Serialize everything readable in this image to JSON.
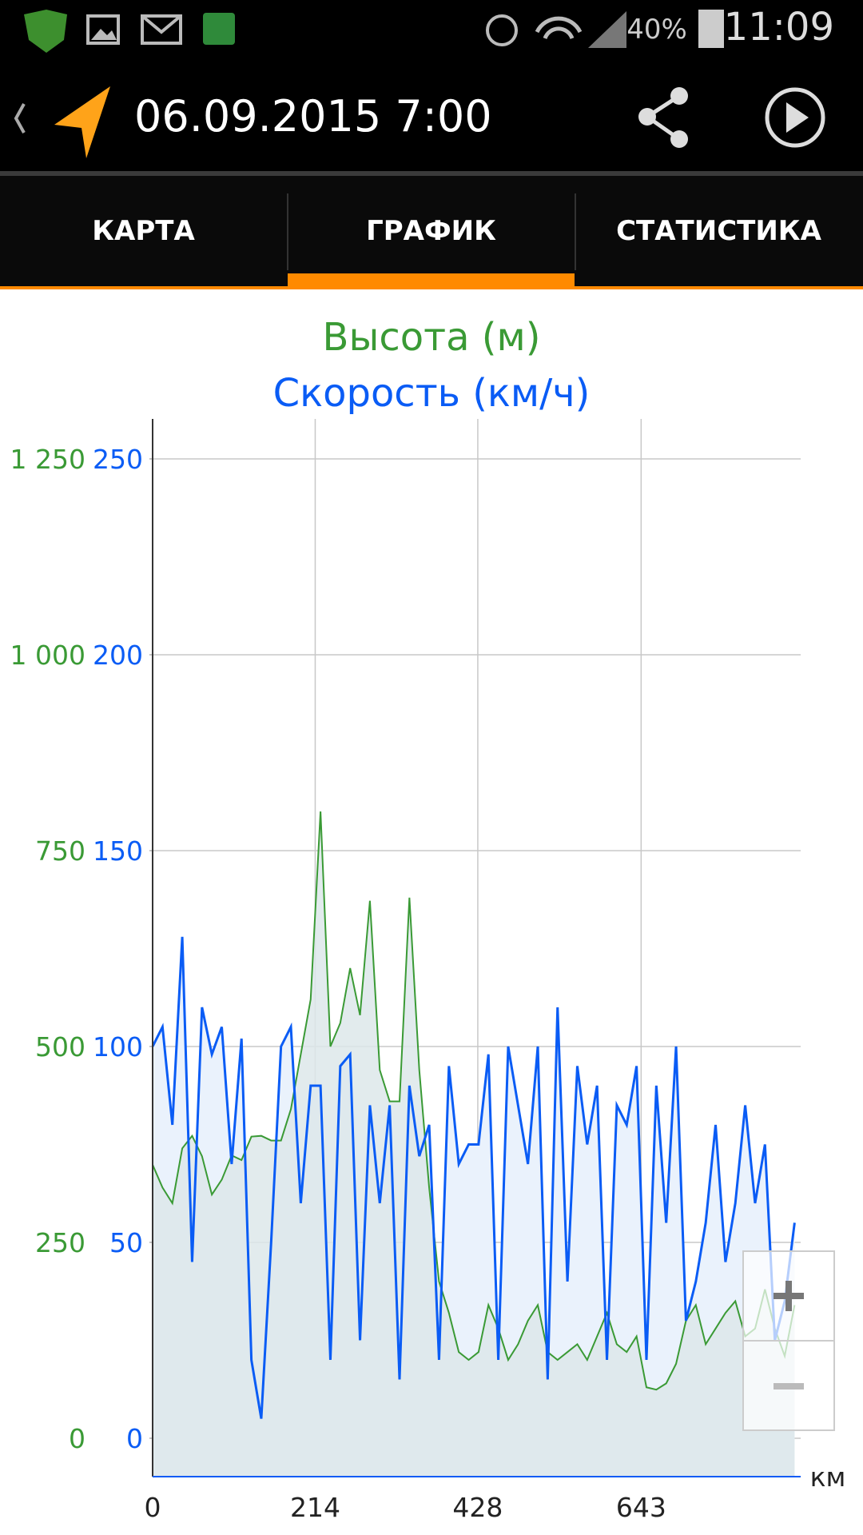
{
  "status_bar": {
    "battery": "40%",
    "time": "11:09"
  },
  "toolbar": {
    "title": "06.09.2015 7:00"
  },
  "tabs": [
    "КАРТА",
    "ГРАФИК",
    "СТАТИСТИКА"
  ],
  "chart_data": {
    "type": "line",
    "x_label": "км",
    "x": [
      0,
      13,
      26,
      39,
      52,
      65,
      78,
      91,
      104,
      117,
      130,
      143,
      156,
      169,
      182,
      195,
      208,
      221,
      234,
      247,
      260,
      273,
      286,
      299,
      312,
      325,
      338,
      351,
      364,
      377,
      390,
      403,
      416,
      429,
      442,
      455,
      468,
      481,
      494,
      507,
      520,
      533,
      546,
      559,
      572,
      585,
      598,
      611,
      624,
      637,
      650,
      663,
      676,
      689,
      702,
      715,
      728,
      741,
      754,
      767,
      780,
      793,
      806,
      819,
      832,
      845
    ],
    "series": [
      {
        "name": "Высота (м)",
        "color": "#3a9a35",
        "axis": "y",
        "values": [
          349,
          320,
          300,
          370,
          386,
          360,
          311,
          330,
          361,
          355,
          385,
          386,
          380,
          380,
          420,
          490,
          560,
          800,
          500,
          530,
          600,
          540,
          686,
          470,
          430,
          430,
          690,
          470,
          320,
          200,
          160,
          110,
          100,
          110,
          170,
          140,
          100,
          120,
          150,
          170,
          110,
          100,
          110,
          120,
          100,
          130,
          160,
          120,
          110,
          130,
          65,
          62,
          70,
          95,
          150,
          170,
          120,
          140,
          160,
          175,
          130,
          140,
          190,
          140,
          105,
          170
        ]
      },
      {
        "name": "Скорость (км/ч)",
        "color": "#0a5cf5",
        "axis": "y2",
        "values": [
          100,
          105,
          80,
          128,
          45,
          110,
          98,
          105,
          70,
          102,
          20,
          5,
          50,
          100,
          105,
          60,
          90,
          90,
          20,
          95,
          98,
          25,
          85,
          60,
          85,
          15,
          90,
          72,
          80,
          20,
          95,
          70,
          75,
          75,
          98,
          20,
          100,
          85,
          70,
          100,
          15,
          110,
          40,
          95,
          75,
          90,
          20,
          85,
          80,
          95,
          20,
          90,
          55,
          100,
          30,
          40,
          55,
          80,
          45,
          60,
          85,
          60,
          75,
          25,
          35,
          55
        ]
      }
    ],
    "xlim": [
      0,
      853
    ],
    "xticks": [
      0,
      214,
      428,
      643
    ],
    "ylim": [
      -49,
      1301
    ],
    "yticks": [
      0,
      250,
      500,
      750,
      {
        "value": 1000,
        "label": "1 000"
      },
      {
        "value": 1250,
        "label": "1 250"
      }
    ],
    "y2lim": [
      -9.8,
      260.2
    ],
    "y2ticks": [
      0,
      50,
      100,
      150,
      200,
      250
    ],
    "grid": true
  }
}
